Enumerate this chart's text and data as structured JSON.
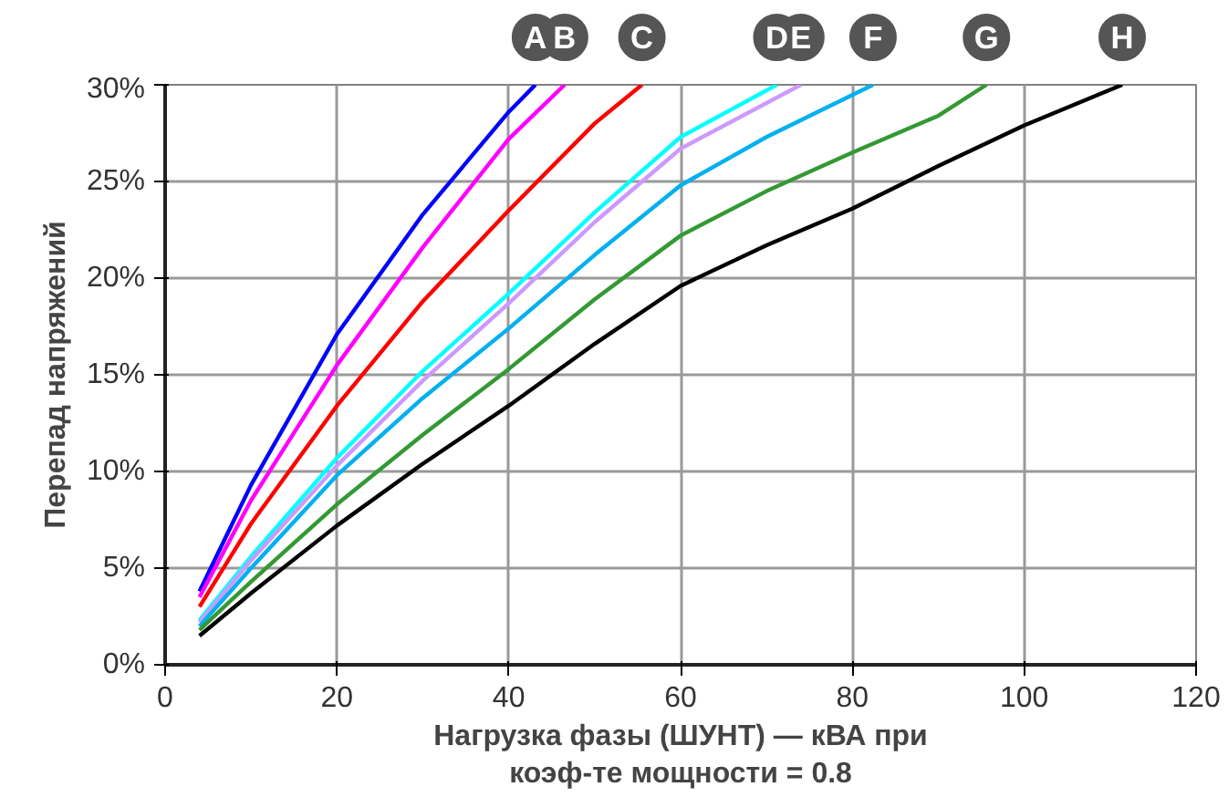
{
  "chart_data": {
    "type": "line",
    "xlabel": "Нагрузка фазы (ШУНТ) — кВА при\nкоэф-те мощности = 0.8",
    "ylabel": "Перепад напряжений",
    "xlim": [
      0,
      120
    ],
    "xticks": [
      0,
      20,
      40,
      60,
      80,
      100,
      120
    ],
    "ylim": [
      0,
      30
    ],
    "yticks": [
      {
        "value": 0,
        "label": "0%"
      },
      {
        "value": 5,
        "label": "5%"
      },
      {
        "value": 10,
        "label": "10%"
      },
      {
        "value": 15,
        "label": "15%"
      },
      {
        "value": 20,
        "label": "20%"
      },
      {
        "value": 25,
        "label": "25%"
      },
      {
        "value": 30,
        "label": "30%"
      }
    ],
    "grid": true,
    "marker": "none",
    "line_style": "solid",
    "series": [
      {
        "name": "A",
        "color": "#0000ff",
        "x": [
          4,
          10,
          20,
          30,
          40,
          43.1
        ],
        "values": [
          3.8,
          9.3,
          17.1,
          23.3,
          28.6,
          30
        ]
      },
      {
        "name": "B",
        "color": "#ff00ff",
        "x": [
          4,
          10,
          20,
          30,
          40,
          46.5
        ],
        "values": [
          3.5,
          8.5,
          15.5,
          21.6,
          27.2,
          30
        ]
      },
      {
        "name": "C",
        "color": "#ff0000",
        "x": [
          4,
          10,
          20,
          30,
          40,
          50,
          55.5
        ],
        "values": [
          3.0,
          7.3,
          13.4,
          18.8,
          23.5,
          28.0,
          30
        ]
      },
      {
        "name": "D",
        "color": "#00ffff",
        "x": [
          4,
          10,
          20,
          30,
          40,
          50,
          60,
          71.2
        ],
        "values": [
          2.3,
          5.6,
          10.7,
          15.2,
          19.2,
          23.4,
          27.3,
          30
        ]
      },
      {
        "name": "E",
        "color": "#cc99ff",
        "x": [
          4,
          10,
          20,
          30,
          40,
          50,
          60,
          74
        ],
        "values": [
          2.2,
          5.4,
          10.3,
          14.7,
          18.7,
          22.9,
          26.7,
          30
        ]
      },
      {
        "name": "F",
        "color": "#00b0f0",
        "x": [
          4,
          10,
          20,
          30,
          40,
          50,
          60,
          70,
          82.4
        ],
        "values": [
          2.0,
          5.0,
          9.8,
          13.8,
          17.4,
          21.2,
          24.8,
          27.3,
          30
        ]
      },
      {
        "name": "G",
        "color": "#339933",
        "x": [
          4,
          10,
          20,
          30,
          40,
          50,
          60,
          70,
          80,
          90,
          95.6
        ],
        "values": [
          1.8,
          4.3,
          8.3,
          11.9,
          15.3,
          18.9,
          22.2,
          24.5,
          26.5,
          28.4,
          30
        ]
      },
      {
        "name": "H",
        "color": "#000000",
        "x": [
          4,
          10,
          20,
          30,
          40,
          50,
          60,
          70,
          80,
          90,
          100,
          111.4
        ],
        "values": [
          1.5,
          3.7,
          7.2,
          10.4,
          13.4,
          16.6,
          19.6,
          21.7,
          23.6,
          25.8,
          27.9,
          30
        ]
      }
    ]
  }
}
